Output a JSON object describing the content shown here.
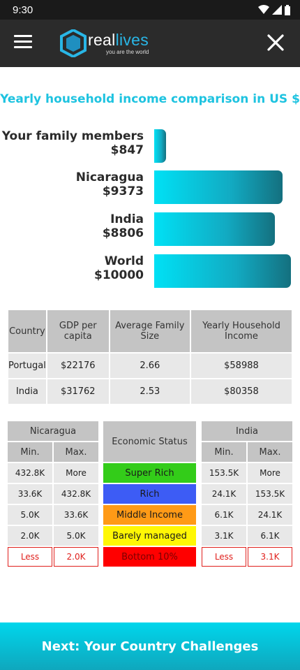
{
  "status_bar": {
    "time": "9:30"
  },
  "app": {
    "logo_word_r": "r",
    "logo_word_rest": "eal",
    "logo_word_accent": "lives",
    "logo_tag": "you are the world"
  },
  "title": "Yearly household income comparison in US $",
  "chart_data": {
    "type": "bar",
    "title": "Yearly household income comparison in US $",
    "categories": [
      "Your family members",
      "Nicaragua",
      "India",
      "World"
    ],
    "values": [
      847,
      9373,
      8806,
      10000
    ],
    "value_labels": [
      "$847",
      "$9373",
      "$8806",
      "$10000"
    ],
    "xlim": [
      0,
      10000
    ]
  },
  "country_table": {
    "headers": [
      "Country",
      "GDP per capita",
      "Average Family Size",
      "Yearly Household Income"
    ],
    "rows": [
      [
        "Portugal",
        "$22176",
        "2.66",
        "$58988"
      ],
      [
        "India",
        "$31762",
        "2.53",
        "$80358"
      ]
    ]
  },
  "left_table": {
    "country": "Nicaragua",
    "min_label": "Min.",
    "max_label": "Max.",
    "rows": [
      [
        "432.8K",
        "More"
      ],
      [
        "33.6K",
        "432.8K"
      ],
      [
        "5.0K",
        "33.6K"
      ],
      [
        "2.0K",
        "5.0K"
      ],
      [
        "Less",
        "2.0K"
      ]
    ]
  },
  "right_table": {
    "country": "India",
    "min_label": "Min.",
    "max_label": "Max.",
    "rows": [
      [
        "153.5K",
        "More"
      ],
      [
        "24.1K",
        "153.5K"
      ],
      [
        "6.1K",
        "24.1K"
      ],
      [
        "3.1K",
        "6.1K"
      ],
      [
        "Less",
        "3.1K"
      ]
    ]
  },
  "economic_status": {
    "header": "Economic Status",
    "levels": [
      {
        "label": "Super Rich",
        "color": "#33cc19",
        "text_color": "#1a1a1a"
      },
      {
        "label": "Rich",
        "color": "#3d5cf5",
        "text_color": "#1a1a1a"
      },
      {
        "label": "Middle Income",
        "color": "#ff9a16",
        "text_color": "#1a1a1a"
      },
      {
        "label": "Barely managed",
        "color": "#fff705",
        "text_color": "#1a1a1a"
      },
      {
        "label": "Bottom 10%",
        "color": "#ff0000",
        "text_color": "#7a0000"
      }
    ]
  },
  "next_button": "Next: Your Country Challenges"
}
